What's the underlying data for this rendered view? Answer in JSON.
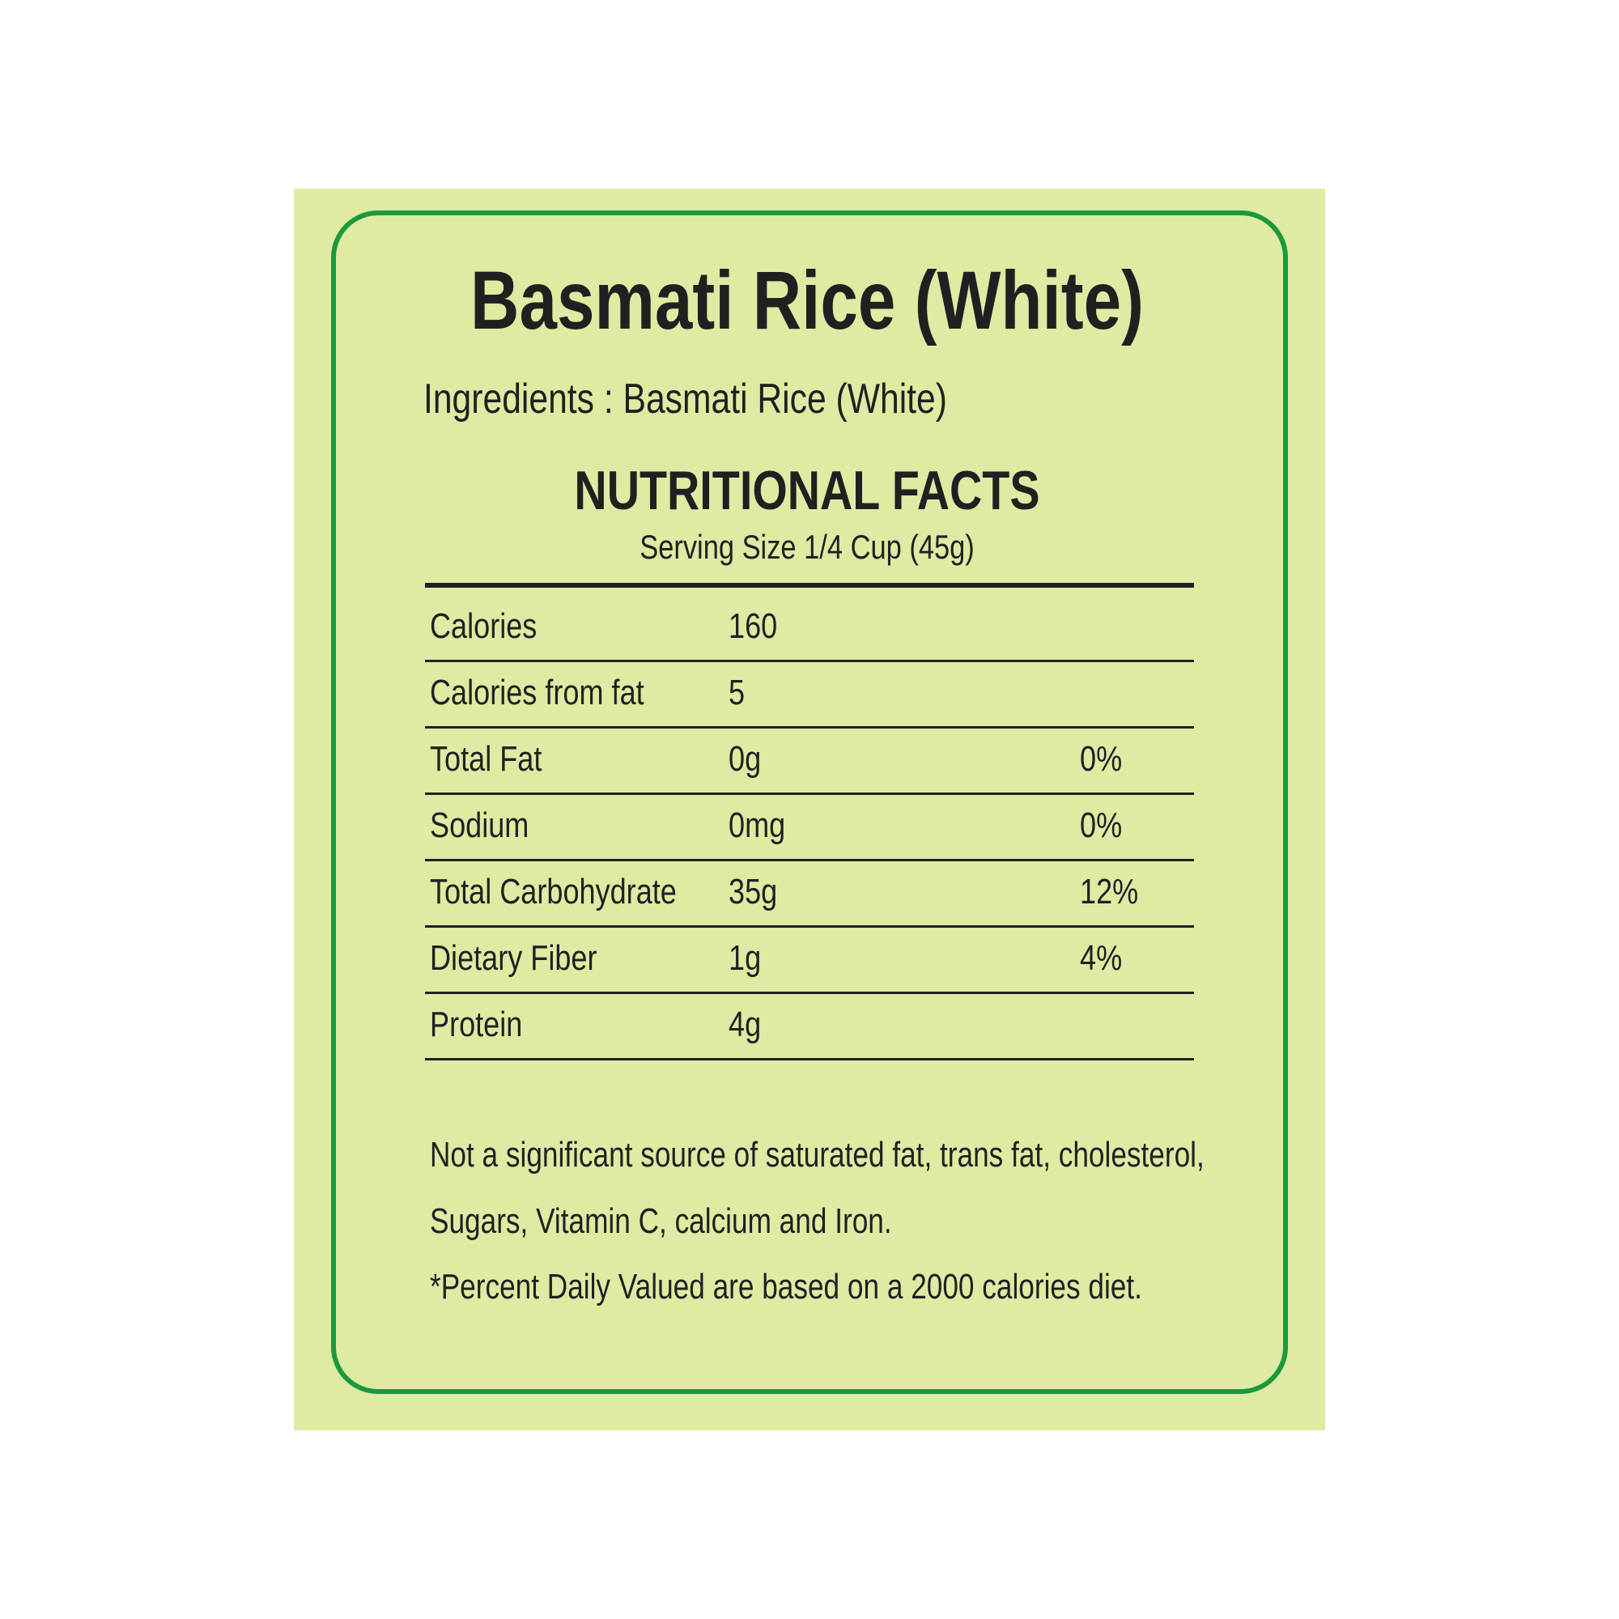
{
  "title": "Basmati Rice (White)",
  "ingredients": "Ingredients : Basmati Rice (White)",
  "section_title": "NUTRITIONAL FACTS",
  "serving_size": "Serving Size 1/4 Cup (45g)",
  "rows": [
    {
      "label": "Calories",
      "amount": "160",
      "percent": ""
    },
    {
      "label": "Calories from fat",
      "amount": "5",
      "percent": ""
    },
    {
      "label": "Total Fat",
      "amount": "0g",
      "percent": "0%"
    },
    {
      "label": "Sodium",
      "amount": "0mg",
      "percent": "0%"
    },
    {
      "label": "Total Carbohydrate",
      "amount": "35g",
      "percent": "12%"
    },
    {
      "label": "Dietary Fiber",
      "amount": "1g",
      "percent": "4%"
    },
    {
      "label": "Protein",
      "amount": "4g",
      "percent": ""
    }
  ],
  "footnotes": [
    "Not a significant source of saturated fat, trans fat, cholesterol,",
    "Sugars, Vitamin C, calcium and Iron.",
    "*Percent Daily Valued are based on a 2000 calories diet."
  ],
  "colors": {
    "background": "#dfeaa3",
    "border": "#1a9a3c",
    "text": "#231f20"
  }
}
